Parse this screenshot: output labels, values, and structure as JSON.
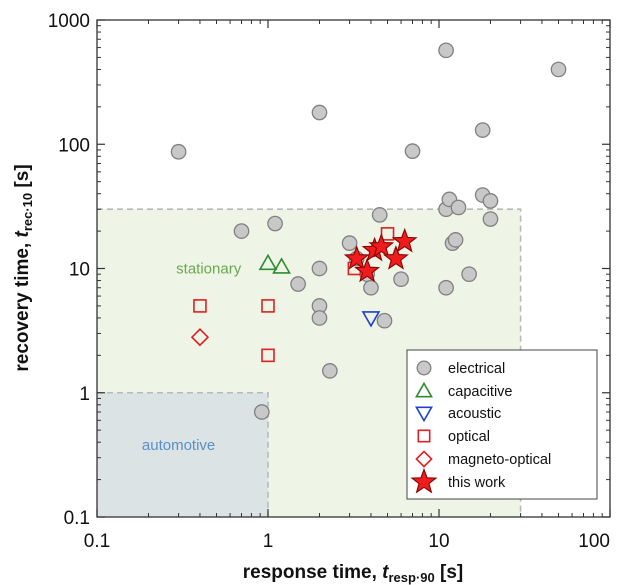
{
  "chart_data": {
    "type": "scatter",
    "x_scale": "log",
    "y_scale": "log",
    "xlim": [
      0.1,
      100
    ],
    "ylim": [
      0.1,
      1000
    ],
    "x_ticks": [
      "0.1",
      "1",
      "10",
      "100"
    ],
    "y_ticks": [
      "0.1",
      "1",
      "10",
      "100",
      "1000"
    ],
    "xlabel": {
      "main": "response time, ",
      "var": "t",
      "sub": "resp·90",
      "unit": " [s]"
    },
    "ylabel": {
      "main": "recovery time, ",
      "var": "t",
      "sub": "rec·10",
      "unit": " [s]"
    },
    "regions": [
      {
        "label": "stationary",
        "x_range": [
          0.1,
          30
        ],
        "y_range": [
          0.1,
          30
        ],
        "fill": "#eef4e6",
        "label_color": "#6aa84f",
        "label_at": [
          0.45,
          10
        ]
      },
      {
        "label": "automotive",
        "x_range": [
          0.1,
          1
        ],
        "y_range": [
          0.1,
          1
        ],
        "fill": "#dbe3e4",
        "label_color": "#5b8fc9",
        "label_at": [
          0.3,
          0.38
        ]
      }
    ],
    "legend_position": "bottom-right",
    "series": [
      {
        "name": "electrical",
        "marker": "circle",
        "color": "#808080",
        "fill": "#c8c8c8",
        "points": [
          [
            0.3,
            87
          ],
          [
            0.7,
            20
          ],
          [
            0.92,
            0.7
          ],
          [
            1.1,
            23
          ],
          [
            1.5,
            7.5
          ],
          [
            2,
            180
          ],
          [
            2,
            10
          ],
          [
            2,
            5
          ],
          [
            2,
            4
          ],
          [
            2.3,
            1.5
          ],
          [
            3,
            16
          ],
          [
            3.3,
            12
          ],
          [
            3.8,
            9
          ],
          [
            4,
            7
          ],
          [
            4.5,
            27
          ],
          [
            4.8,
            3.8
          ],
          [
            6,
            8.2
          ],
          [
            7,
            88
          ],
          [
            11,
            570
          ],
          [
            11,
            30
          ],
          [
            11.5,
            36
          ],
          [
            11,
            7
          ],
          [
            12,
            16
          ],
          [
            12.5,
            17
          ],
          [
            13,
            31
          ],
          [
            15,
            9
          ],
          [
            18,
            130
          ],
          [
            18,
            39
          ],
          [
            20,
            25
          ],
          [
            20,
            35
          ],
          [
            50,
            400
          ]
        ]
      },
      {
        "name": "capacitive",
        "marker": "triangle-up",
        "color": "#2e8b2e",
        "fill": "none",
        "points": [
          [
            1,
            11
          ],
          [
            1.2,
            10.3
          ]
        ]
      },
      {
        "name": "acoustic",
        "marker": "triangle-down",
        "color": "#1f3fd6",
        "fill": "none",
        "points": [
          [
            4,
            4
          ]
        ]
      },
      {
        "name": "optical",
        "marker": "square",
        "color": "#e02020",
        "fill": "none",
        "points": [
          [
            0.4,
            5
          ],
          [
            1,
            5
          ],
          [
            1,
            2
          ],
          [
            3.2,
            10
          ],
          [
            5,
            19
          ]
        ]
      },
      {
        "name": "magneto-optical",
        "marker": "diamond",
        "color": "#e02020",
        "fill": "none",
        "points": [
          [
            0.4,
            2.8
          ]
        ]
      },
      {
        "name": "this work",
        "marker": "star",
        "color": "#8b0000",
        "fill": "#ee1c1c",
        "points": [
          [
            3.3,
            12
          ],
          [
            3.8,
            9.5
          ],
          [
            4.2,
            14
          ],
          [
            4.6,
            15
          ],
          [
            5.6,
            12
          ],
          [
            6.3,
            16.5
          ]
        ]
      }
    ]
  }
}
